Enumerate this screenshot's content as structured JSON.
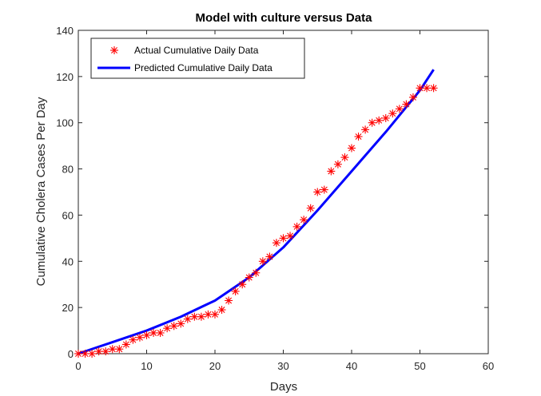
{
  "chart_data": {
    "type": "line",
    "title": "Model with culture versus Data",
    "xlabel": "Days",
    "ylabel": "Cumulative Cholera Cases Per Day",
    "xlim": [
      0,
      60
    ],
    "ylim": [
      0,
      140
    ],
    "xticks": [
      0,
      10,
      20,
      30,
      40,
      50,
      60
    ],
    "yticks": [
      0,
      20,
      40,
      60,
      80,
      100,
      120,
      140
    ],
    "grid": false,
    "legend_position": "top-left",
    "series": [
      {
        "name": "Actual Cumulative Daily Data",
        "kind": "scatter",
        "marker": "asterisk",
        "color": "#ff0000",
        "x": [
          0,
          1,
          2,
          3,
          4,
          5,
          6,
          7,
          8,
          9,
          10,
          11,
          12,
          13,
          14,
          15,
          16,
          17,
          18,
          19,
          20,
          21,
          22,
          23,
          24,
          25,
          26,
          27,
          28,
          29,
          30,
          31,
          32,
          33,
          34,
          35,
          36,
          37,
          38,
          39,
          40,
          41,
          42,
          43,
          44,
          45,
          46,
          47,
          48,
          49,
          50,
          51,
          52
        ],
        "y": [
          0,
          0,
          0,
          1,
          1,
          2,
          2,
          4,
          6,
          7,
          8,
          9,
          9,
          11,
          12,
          13,
          15,
          16,
          16,
          17,
          17,
          19,
          23,
          27,
          30,
          33,
          35,
          40,
          42,
          48,
          50,
          51,
          55,
          58,
          63,
          70,
          71,
          79,
          82,
          85,
          89,
          94,
          97,
          100,
          101,
          102,
          104,
          106,
          108,
          111,
          115,
          115,
          115
        ]
      },
      {
        "name": "Predicted Cumulative Daily Data",
        "kind": "line",
        "color": "#0000ff",
        "x": [
          0,
          5,
          10,
          15,
          20,
          25,
          30,
          35,
          40,
          45,
          50,
          52
        ],
        "y": [
          0,
          5,
          10,
          16,
          23,
          33,
          46,
          62,
          79,
          96,
          114,
          123
        ]
      }
    ]
  }
}
